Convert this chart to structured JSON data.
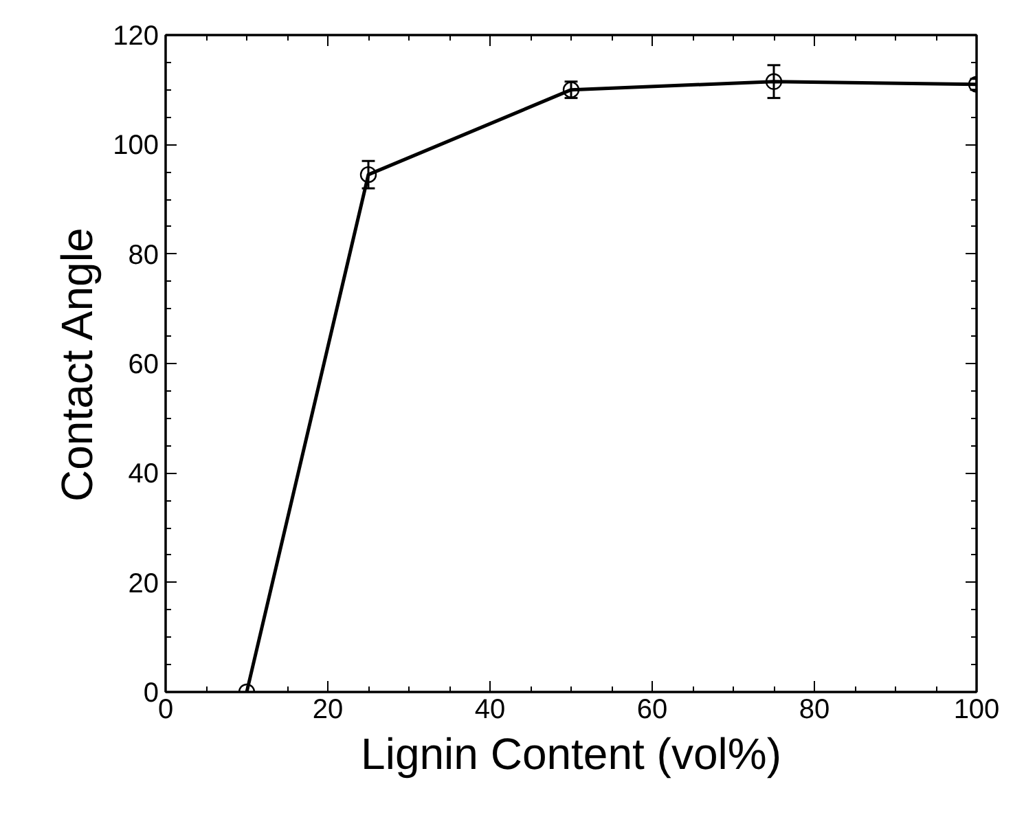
{
  "chart_data": {
    "type": "line",
    "xlabel": "Lignin Content (vol%)",
    "ylabel": "Contact Angle",
    "x": [
      10,
      25,
      50,
      75,
      100
    ],
    "series": [
      {
        "color": "#000000",
        "values": [
          0,
          94.5,
          110,
          111.5,
          111
        ],
        "errors": [
          null,
          2.5,
          1.5,
          3,
          1
        ]
      }
    ],
    "xlim": [
      0,
      100
    ],
    "ylim": [
      0,
      120
    ],
    "xticks": [
      0,
      20,
      40,
      60,
      80,
      100
    ],
    "yticks": [
      0,
      20,
      40,
      60,
      80,
      100,
      120
    ],
    "marker": "circle",
    "line_style": "solid",
    "grid": false
  }
}
